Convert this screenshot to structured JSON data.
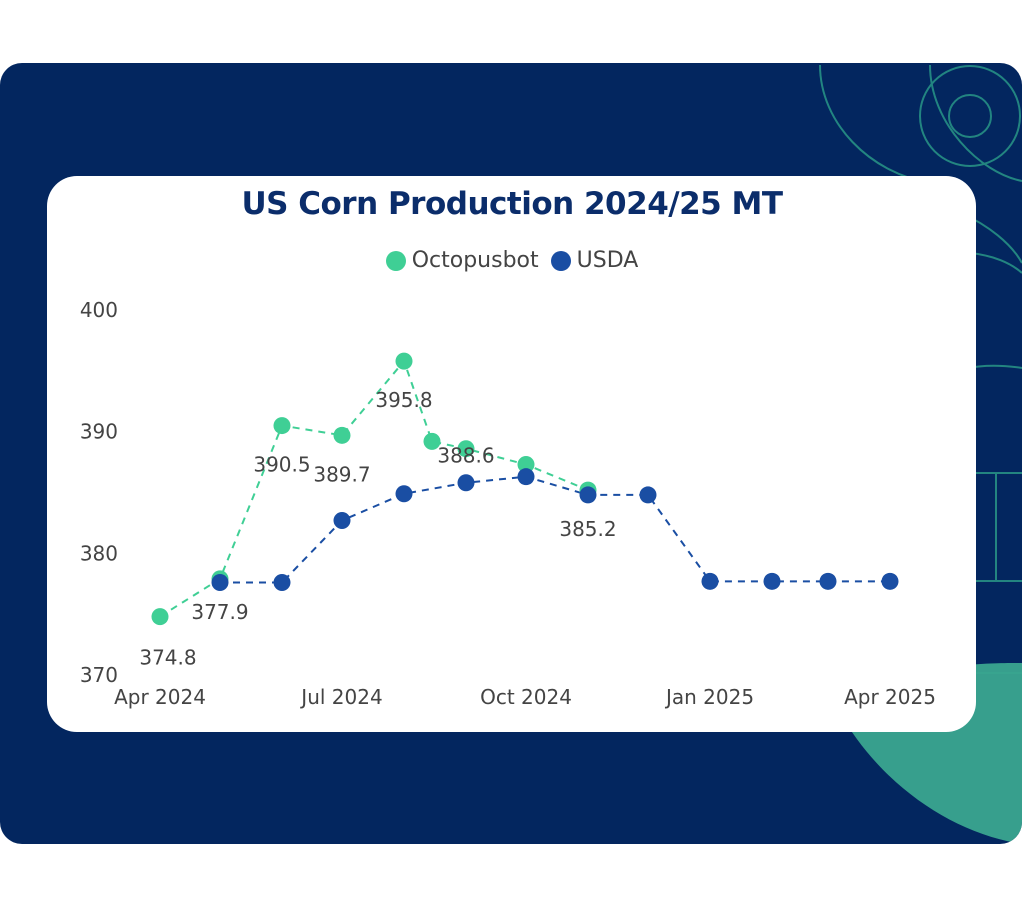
{
  "colors": {
    "background_panel": "#03265f",
    "card": "#ffffff",
    "octopusbot": "#3fcf95",
    "usda": "#1a4ea3",
    "decor": "#2ea58c"
  },
  "chart_data": {
    "type": "line",
    "title": "US Corn Production 2024/25 MT",
    "xlabel": "",
    "ylabel": "",
    "ylim": [
      370,
      400
    ],
    "yticks": [
      "370",
      "380",
      "390",
      "400"
    ],
    "xticks": [
      "Apr 2024",
      "Jul 2024",
      "Oct 2024",
      "Jan 2025",
      "Apr 2025"
    ],
    "legend_position": "top-center",
    "grid": false,
    "series": [
      {
        "name": "Octopusbot",
        "style": "dashed",
        "x": [
          "2024-04-01",
          "2024-05-01",
          "2024-06-01",
          "2024-07-01",
          "2024-08-01",
          "2024-08-15",
          "2024-09-01",
          "2024-10-01",
          "2024-11-01"
        ],
        "values": [
          374.8,
          377.9,
          390.5,
          389.7,
          395.8,
          389.2,
          388.6,
          387.3,
          385.2
        ]
      },
      {
        "name": "USDA",
        "style": "dashed",
        "x": [
          "2024-05-01",
          "2024-06-01",
          "2024-07-01",
          "2024-08-01",
          "2024-09-01",
          "2024-10-01",
          "2024-11-01",
          "2024-12-01",
          "2025-01-01",
          "2025-02-01",
          "2025-03-01",
          "2025-04-01"
        ],
        "values": [
          377.6,
          377.6,
          382.7,
          384.9,
          385.8,
          386.3,
          384.8,
          384.8,
          377.7,
          377.7,
          377.7,
          377.7
        ]
      }
    ],
    "data_labels": [
      {
        "series": "Octopusbot",
        "x": "2024-04-01",
        "text": "374.8"
      },
      {
        "series": "Octopusbot",
        "x": "2024-05-01",
        "text": "377.9"
      },
      {
        "series": "Octopusbot",
        "x": "2024-06-01",
        "text": "390.5"
      },
      {
        "series": "Octopusbot",
        "x": "2024-07-01",
        "text": "389.7"
      },
      {
        "series": "Octopusbot",
        "x": "2024-08-01",
        "text": "395.8"
      },
      {
        "series": "Octopusbot",
        "x": "2024-09-01",
        "text": "388.6"
      },
      {
        "series": "Octopusbot",
        "x": "2024-11-01",
        "text": "385.2"
      }
    ]
  }
}
